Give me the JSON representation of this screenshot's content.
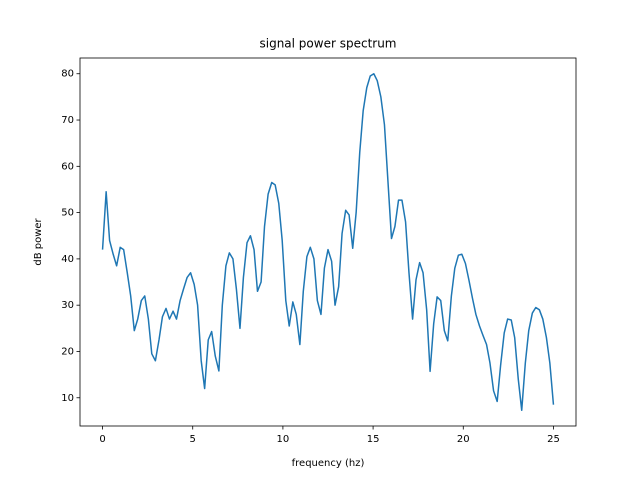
{
  "chart_data": {
    "type": "line",
    "title": "signal power spectrum",
    "xlabel": "frequency (hz)",
    "ylabel": "dB power",
    "color": "#1f77b4",
    "x": [
      0,
      0.2,
      0.39,
      0.59,
      0.78,
      0.98,
      1.17,
      1.37,
      1.56,
      1.76,
      1.95,
      2.15,
      2.34,
      2.54,
      2.73,
      2.93,
      3.13,
      3.32,
      3.52,
      3.71,
      3.91,
      4.1,
      4.3,
      4.49,
      4.69,
      4.88,
      5.08,
      5.27,
      5.47,
      5.66,
      5.86,
      6.05,
      6.25,
      6.45,
      6.64,
      6.84,
      7.03,
      7.23,
      7.42,
      7.62,
      7.81,
      8.01,
      8.2,
      8.4,
      8.59,
      8.79,
      8.98,
      9.18,
      9.38,
      9.57,
      9.77,
      9.96,
      10.16,
      10.35,
      10.55,
      10.74,
      10.94,
      11.13,
      11.33,
      11.52,
      11.72,
      11.91,
      12.11,
      12.3,
      12.5,
      12.7,
      12.89,
      13.09,
      13.28,
      13.48,
      13.67,
      13.87,
      14.06,
      14.26,
      14.45,
      14.65,
      14.84,
      15.04,
      15.23,
      15.43,
      15.63,
      15.82,
      16.02,
      16.21,
      16.41,
      16.6,
      16.8,
      16.99,
      17.19,
      17.38,
      17.58,
      17.77,
      17.97,
      18.16,
      18.36,
      18.55,
      18.75,
      18.95,
      19.14,
      19.34,
      19.53,
      19.73,
      19.92,
      20.12,
      20.31,
      20.51,
      20.7,
      20.9,
      21.09,
      21.29,
      21.48,
      21.68,
      21.88,
      22.07,
      22.27,
      22.46,
      22.66,
      22.85,
      23.05,
      23.24,
      23.44,
      23.63,
      23.83,
      24.02,
      24.22,
      24.41,
      24.61,
      24.8,
      25
    ],
    "values": [
      42,
      54.5,
      44,
      41,
      38.5,
      42.5,
      42,
      37,
      32,
      24.5,
      27,
      31,
      32,
      27,
      19.5,
      18,
      22.5,
      27.5,
      29.3,
      27,
      28.7,
      27,
      31,
      33.5,
      36,
      37,
      34.5,
      30,
      18,
      12,
      22.5,
      24.3,
      19,
      15.8,
      30,
      38.5,
      41.3,
      40,
      33.5,
      25,
      36,
      43.5,
      45,
      42,
      33,
      35,
      47,
      54,
      56.5,
      56,
      52,
      44,
      31,
      25.5,
      30.7,
      28,
      21.5,
      33,
      40.5,
      42.5,
      40,
      31,
      28,
      38,
      42,
      39.5,
      30,
      34,
      45.5,
      50.5,
      49.5,
      42.3,
      50,
      63,
      72,
      77,
      79.5,
      80,
      78.5,
      75,
      69,
      57,
      44.4,
      47,
      52.7,
      52.7,
      48,
      37,
      27,
      35.5,
      39.2,
      37,
      29,
      15.7,
      26,
      31.8,
      31,
      24.5,
      22.3,
      32,
      38,
      40.8,
      41,
      39,
      35.5,
      31.5,
      28,
      25.5,
      23.5,
      21.5,
      17.5,
      11.5,
      9.2,
      17,
      24,
      27,
      26.8,
      23,
      14,
      7.3,
      17.5,
      24.5,
      28.3,
      29.5,
      29,
      27,
      23,
      17.5,
      8.5
    ],
    "xlim": [
      -1.25,
      26.25
    ],
    "ylim": [
      3.9,
      83.4
    ],
    "xticks": [
      0,
      5,
      10,
      15,
      20,
      25
    ],
    "yticks": [
      10,
      20,
      30,
      40,
      50,
      60,
      70,
      80
    ]
  }
}
